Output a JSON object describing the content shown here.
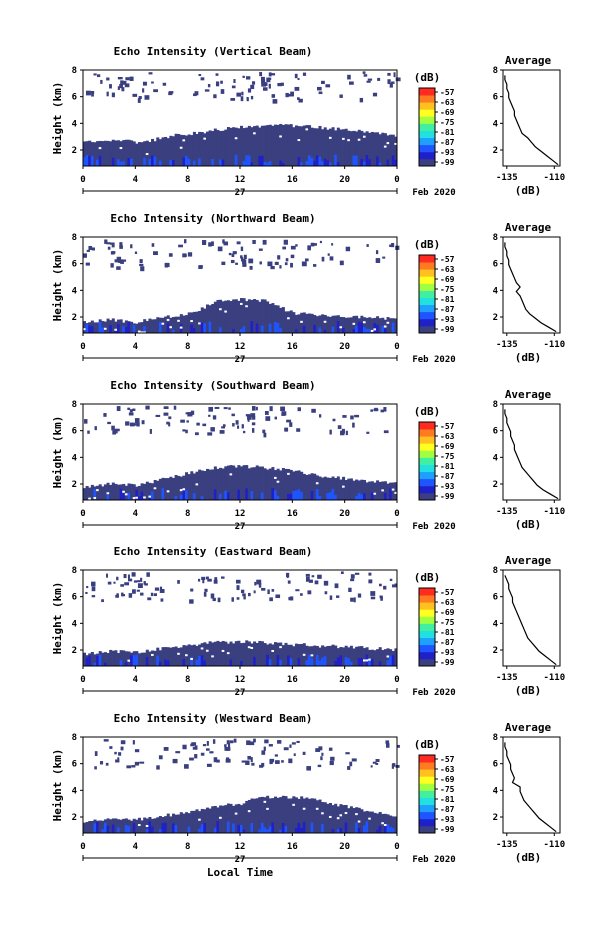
{
  "chart_data": {
    "type": "heatmap",
    "date_label": "Feb 2020",
    "day_label": "27",
    "xlabel": "Local Time",
    "x_ticks": [
      "0",
      "4",
      "8",
      "12",
      "16",
      "20",
      "0"
    ],
    "xlim_hours": [
      0,
      24
    ],
    "ylabel": "Height (km)",
    "y_ticks": [
      "2",
      "4",
      "6",
      "8"
    ],
    "ylim_km": [
      0.8,
      8
    ],
    "colorbar": {
      "unit": "(dB)",
      "labels": [
        "-57",
        "-63",
        "-69",
        "-75",
        "-81",
        "-87",
        "-93",
        "-99"
      ],
      "colors": [
        "#3a3f7f",
        "#2020c8",
        "#1f55ff",
        "#1fa0ff",
        "#20e0e0",
        "#40f0a0",
        "#a0ff40",
        "#ffff20",
        "#ffc020",
        "#ff7a20",
        "#ff2a20"
      ]
    },
    "avg_profile": {
      "title": "Average",
      "xlabel": "(dB)",
      "x_ticks": [
        "-135",
        "-110"
      ],
      "xlim": [
        -137,
        -107
      ],
      "y_ticks": [
        "2",
        "4",
        "6",
        "8"
      ]
    },
    "panels": [
      {
        "title": "Echo Intensity (Vertical Beam)",
        "low_layer_top_km": [
          2.6,
          2.7,
          2.7,
          2.8,
          2.6,
          2.7,
          2.9,
          3.1,
          3.2,
          3.3,
          3.5,
          3.6,
          3.7,
          3.8,
          3.8,
          3.9,
          3.8,
          3.8,
          3.7,
          3.6,
          3.5,
          3.4,
          3.3,
          3.2,
          3.1
        ],
        "avg_values": [
          -108,
          -111,
          -114,
          -117,
          -120,
          -122,
          -124,
          -127,
          -128,
          -129,
          -130,
          -131,
          -131,
          -132,
          -133,
          -134,
          -134,
          -135,
          -135,
          -136,
          -136
        ]
      },
      {
        "title": "Echo Intensity (Northward Beam)",
        "low_layer_top_km": [
          1.6,
          1.7,
          1.8,
          1.7,
          1.6,
          1.8,
          2.0,
          2.1,
          2.3,
          2.6,
          3.2,
          3.3,
          3.3,
          3.3,
          3.2,
          2.7,
          2.3,
          2.2,
          2.1,
          2.1,
          2.0,
          2.0,
          2.0,
          1.9,
          1.8
        ],
        "avg_values": [
          -109,
          -113,
          -117,
          -120,
          -123,
          -125,
          -126,
          -127,
          -128,
          -130,
          -128,
          -130,
          -131,
          -132,
          -133,
          -134,
          -134,
          -135,
          -135,
          -136,
          -136
        ]
      },
      {
        "title": "Echo Intensity (Southward Beam)",
        "low_layer_top_km": [
          1.7,
          1.9,
          2.0,
          2.0,
          1.9,
          2.1,
          2.4,
          2.6,
          2.8,
          3.0,
          3.2,
          3.3,
          3.3,
          3.3,
          3.2,
          3.1,
          3.0,
          2.8,
          2.6,
          2.5,
          2.4,
          2.3,
          2.2,
          2.1,
          2.0
        ],
        "avg_values": [
          -108,
          -112,
          -116,
          -119,
          -121,
          -123,
          -125,
          -127,
          -128,
          -129,
          -130,
          -131,
          -131,
          -132,
          -133,
          -133,
          -134,
          -135,
          -135,
          -136,
          -136
        ]
      },
      {
        "title": "Echo Intensity (Eastward Beam)",
        "low_layer_top_km": [
          1.7,
          1.8,
          1.9,
          1.9,
          1.8,
          2.0,
          2.1,
          2.2,
          2.3,
          2.5,
          2.6,
          2.6,
          2.6,
          2.6,
          2.5,
          2.5,
          2.4,
          2.4,
          2.3,
          2.3,
          2.2,
          2.2,
          2.1,
          2.1,
          2.0
        ],
        "avg_values": [
          -109,
          -112,
          -115,
          -118,
          -120,
          -122,
          -124,
          -125,
          -126,
          -127,
          -128,
          -129,
          -130,
          -131,
          -132,
          -132,
          -133,
          -134,
          -134,
          -135,
          -136
        ]
      },
      {
        "title": "Echo Intensity (Westward Beam)",
        "low_layer_top_km": [
          1.7,
          1.8,
          1.9,
          1.9,
          1.8,
          1.9,
          2.1,
          2.2,
          2.4,
          2.6,
          2.8,
          2.9,
          3.0,
          3.4,
          3.5,
          3.5,
          3.5,
          3.4,
          3.2,
          3.0,
          2.8,
          2.6,
          2.4,
          2.2,
          2.1
        ],
        "avg_values": [
          -109,
          -112,
          -115,
          -118,
          -120,
          -122,
          -124,
          -126,
          -127,
          -128,
          -128,
          -132,
          -131,
          -132,
          -133,
          -133,
          -134,
          -135,
          -135,
          -136,
          -136
        ]
      }
    ]
  }
}
